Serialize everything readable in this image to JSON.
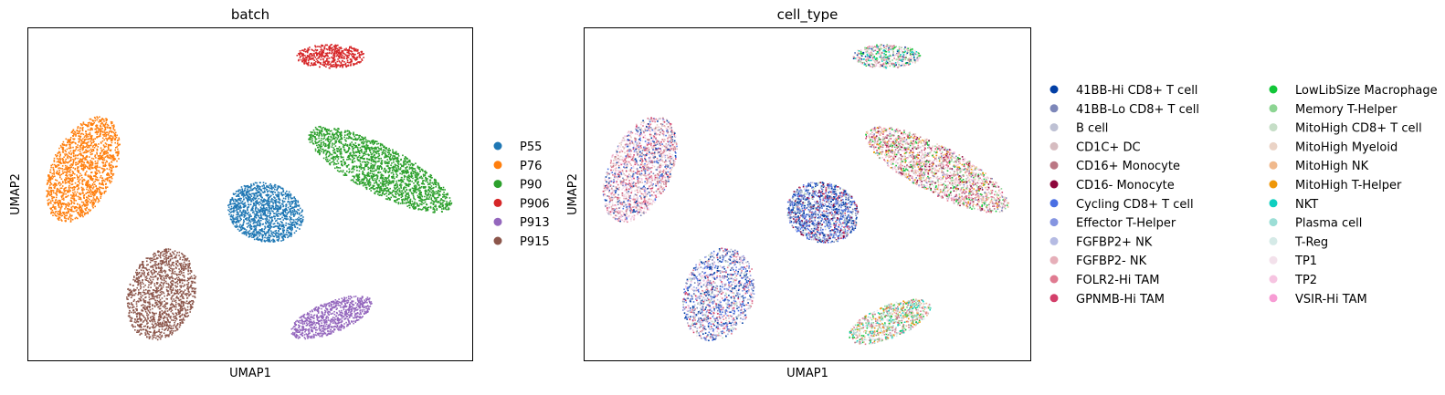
{
  "chart_data": [
    {
      "type": "scatter",
      "title": "batch",
      "xlabel": "UMAP1",
      "ylabel": "UMAP2",
      "grid": false,
      "xticks": [],
      "yticks": [],
      "legend_placement": "right",
      "series": [
        {
          "name": "P55",
          "color": "#1f77b4"
        },
        {
          "name": "P76",
          "color": "#ff7f0e"
        },
        {
          "name": "P90",
          "color": "#2ca02c"
        },
        {
          "name": "P906",
          "color": "#d62728"
        },
        {
          "name": "P913",
          "color": "#9467bd"
        },
        {
          "name": "P915",
          "color": "#8c564b"
        }
      ]
    },
    {
      "type": "scatter",
      "title": "cell_type",
      "xlabel": "UMAP1",
      "ylabel": "UMAP2",
      "grid": false,
      "xticks": [],
      "yticks": [],
      "legend_placement": "right",
      "series": [
        {
          "name": "41BB-Hi CD8+ T cell",
          "color": "#023fa5"
        },
        {
          "name": "41BB-Lo CD8+ T cell",
          "color": "#7d87b9"
        },
        {
          "name": "B cell",
          "color": "#bec1d4"
        },
        {
          "name": "CD1C+ DC",
          "color": "#d6bcc0"
        },
        {
          "name": "CD16+ Monocyte",
          "color": "#bb7784"
        },
        {
          "name": "CD16- Monocyte",
          "color": "#8e063b"
        },
        {
          "name": "Cycling CD8+ T cell",
          "color": "#4a6fe3"
        },
        {
          "name": "Effector T-Helper",
          "color": "#8595e1"
        },
        {
          "name": "FGFBP2+ NK",
          "color": "#b5bbe3"
        },
        {
          "name": "FGFBP2- NK",
          "color": "#e6afb9"
        },
        {
          "name": "FOLR2-Hi TAM",
          "color": "#e07b91"
        },
        {
          "name": "GPNMB-Hi TAM",
          "color": "#d33f6a"
        },
        {
          "name": "LowLibSize Macrophage",
          "color": "#11c638"
        },
        {
          "name": "Memory T-Helper",
          "color": "#8dd593"
        },
        {
          "name": "MitoHigh CD8+ T cell",
          "color": "#c6dec7"
        },
        {
          "name": "MitoHigh Myeloid",
          "color": "#ead3c6"
        },
        {
          "name": "MitoHigh NK",
          "color": "#f0b98d"
        },
        {
          "name": "MitoHigh T-Helper",
          "color": "#ef9708"
        },
        {
          "name": "NKT",
          "color": "#0fcfc0"
        },
        {
          "name": "Plasma cell",
          "color": "#9cded6"
        },
        {
          "name": "T-Reg",
          "color": "#d5eae7"
        },
        {
          "name": "TP1",
          "color": "#f3e1eb"
        },
        {
          "name": "TP2",
          "color": "#f6c4e1"
        },
        {
          "name": "VSIR-Hi TAM",
          "color": "#f79cd4"
        }
      ]
    }
  ]
}
